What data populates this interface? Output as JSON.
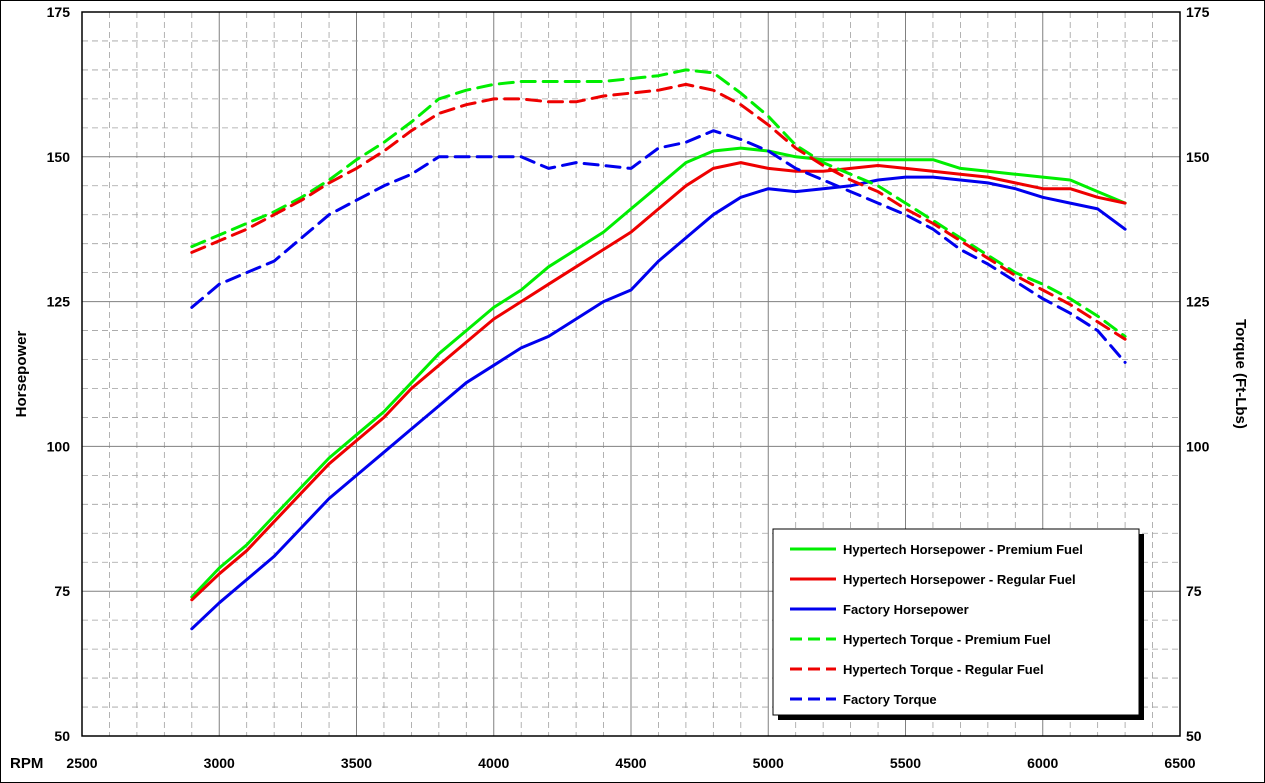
{
  "chart_data": {
    "type": "line",
    "xlabel": "RPM",
    "ylabel_left": "Horsepower",
    "ylabel_right": "Torque (Ft-Lbs)",
    "xlim": [
      2500,
      6500
    ],
    "ylim": [
      50,
      175
    ],
    "x_ticks": [
      "2500",
      "3000",
      "3500",
      "4000",
      "4500",
      "5000",
      "5500",
      "6000",
      "6500"
    ],
    "y_ticks": [
      "50",
      "75",
      "100",
      "125",
      "150",
      "175"
    ],
    "grid": true,
    "legend_position": "bottom-right",
    "series": [
      {
        "name": "Hypertech Horsepower - Premium Fuel",
        "color": "#00ee00",
        "dash": "solid",
        "points": [
          [
            2900,
            74
          ],
          [
            3000,
            79
          ],
          [
            3100,
            83
          ],
          [
            3200,
            88
          ],
          [
            3300,
            93
          ],
          [
            3400,
            98
          ],
          [
            3500,
            102
          ],
          [
            3600,
            106
          ],
          [
            3700,
            111
          ],
          [
            3800,
            116
          ],
          [
            3900,
            120
          ],
          [
            4000,
            124
          ],
          [
            4100,
            127
          ],
          [
            4200,
            131
          ],
          [
            4300,
            134
          ],
          [
            4400,
            137
          ],
          [
            4500,
            141
          ],
          [
            4600,
            145
          ],
          [
            4700,
            149
          ],
          [
            4800,
            151
          ],
          [
            4900,
            151.5
          ],
          [
            5000,
            151
          ],
          [
            5100,
            150
          ],
          [
            5200,
            149.5
          ],
          [
            5300,
            149.5
          ],
          [
            5400,
            149.5
          ],
          [
            5500,
            149.5
          ],
          [
            5600,
            149.5
          ],
          [
            5700,
            148
          ],
          [
            5800,
            147.5
          ],
          [
            5900,
            147
          ],
          [
            6000,
            146.5
          ],
          [
            6100,
            146
          ],
          [
            6200,
            144
          ],
          [
            6300,
            142
          ]
        ]
      },
      {
        "name": "Hypertech Horsepower - Regular Fuel",
        "color": "#ee0000",
        "dash": "solid",
        "points": [
          [
            2900,
            73.5
          ],
          [
            3000,
            78
          ],
          [
            3100,
            82
          ],
          [
            3200,
            87
          ],
          [
            3300,
            92
          ],
          [
            3400,
            97
          ],
          [
            3500,
            101
          ],
          [
            3600,
            105
          ],
          [
            3700,
            110
          ],
          [
            3800,
            114
          ],
          [
            3900,
            118
          ],
          [
            4000,
            122
          ],
          [
            4100,
            125
          ],
          [
            4200,
            128
          ],
          [
            4300,
            131
          ],
          [
            4400,
            134
          ],
          [
            4500,
            137
          ],
          [
            4600,
            141
          ],
          [
            4700,
            145
          ],
          [
            4800,
            148
          ],
          [
            4900,
            149
          ],
          [
            5000,
            148
          ],
          [
            5100,
            147.5
          ],
          [
            5200,
            147.5
          ],
          [
            5300,
            148
          ],
          [
            5400,
            148.5
          ],
          [
            5500,
            148
          ],
          [
            5600,
            147.5
          ],
          [
            5700,
            147
          ],
          [
            5800,
            146.5
          ],
          [
            5900,
            145.5
          ],
          [
            6000,
            144.5
          ],
          [
            6100,
            144.5
          ],
          [
            6200,
            143
          ],
          [
            6300,
            142
          ]
        ]
      },
      {
        "name": "Factory Horsepower",
        "color": "#0000ee",
        "dash": "solid",
        "points": [
          [
            2900,
            68.5
          ],
          [
            3000,
            73
          ],
          [
            3100,
            77
          ],
          [
            3200,
            81
          ],
          [
            3300,
            86
          ],
          [
            3400,
            91
          ],
          [
            3500,
            95
          ],
          [
            3600,
            99
          ],
          [
            3700,
            103
          ],
          [
            3800,
            107
          ],
          [
            3900,
            111
          ],
          [
            4000,
            114
          ],
          [
            4100,
            117
          ],
          [
            4200,
            119
          ],
          [
            4300,
            122
          ],
          [
            4400,
            125
          ],
          [
            4500,
            127
          ],
          [
            4600,
            132
          ],
          [
            4700,
            136
          ],
          [
            4800,
            140
          ],
          [
            4900,
            143
          ],
          [
            5000,
            144.5
          ],
          [
            5100,
            144
          ],
          [
            5200,
            144.5
          ],
          [
            5300,
            145
          ],
          [
            5400,
            146
          ],
          [
            5500,
            146.5
          ],
          [
            5600,
            146.5
          ],
          [
            5700,
            146
          ],
          [
            5800,
            145.5
          ],
          [
            5900,
            144.5
          ],
          [
            6000,
            143
          ],
          [
            6100,
            142
          ],
          [
            6200,
            141
          ],
          [
            6300,
            137.5
          ]
        ]
      },
      {
        "name": "Hypertech Torque - Premium Fuel",
        "color": "#00ee00",
        "dash": "dashed",
        "points": [
          [
            2900,
            134.5
          ],
          [
            3000,
            136.5
          ],
          [
            3100,
            138.5
          ],
          [
            3200,
            140.5
          ],
          [
            3300,
            143
          ],
          [
            3400,
            146
          ],
          [
            3500,
            149.5
          ],
          [
            3600,
            152.5
          ],
          [
            3700,
            156
          ],
          [
            3800,
            160
          ],
          [
            3900,
            161.5
          ],
          [
            4000,
            162.5
          ],
          [
            4100,
            163
          ],
          [
            4200,
            163
          ],
          [
            4300,
            163
          ],
          [
            4400,
            163
          ],
          [
            4500,
            163.5
          ],
          [
            4600,
            164
          ],
          [
            4700,
            165
          ],
          [
            4800,
            164.5
          ],
          [
            4900,
            161
          ],
          [
            5000,
            157
          ],
          [
            5100,
            152
          ],
          [
            5200,
            149
          ],
          [
            5300,
            147
          ],
          [
            5400,
            145
          ],
          [
            5500,
            142
          ],
          [
            5600,
            139
          ],
          [
            5700,
            136
          ],
          [
            5800,
            133
          ],
          [
            5900,
            130
          ],
          [
            6000,
            128
          ],
          [
            6100,
            125.5
          ],
          [
            6200,
            122.5
          ],
          [
            6300,
            119
          ]
        ]
      },
      {
        "name": "Hypertech Torque - Regular Fuel",
        "color": "#ee0000",
        "dash": "dashed",
        "points": [
          [
            2900,
            133.5
          ],
          [
            3000,
            135.5
          ],
          [
            3100,
            137.5
          ],
          [
            3200,
            140
          ],
          [
            3300,
            142.5
          ],
          [
            3400,
            145.5
          ],
          [
            3500,
            148
          ],
          [
            3600,
            151
          ],
          [
            3700,
            154.5
          ],
          [
            3800,
            157.5
          ],
          [
            3900,
            159
          ],
          [
            4000,
            160
          ],
          [
            4100,
            160
          ],
          [
            4200,
            159.5
          ],
          [
            4300,
            159.5
          ],
          [
            4400,
            160.5
          ],
          [
            4500,
            161
          ],
          [
            4600,
            161.5
          ],
          [
            4700,
            162.5
          ],
          [
            4800,
            161.5
          ],
          [
            4900,
            159
          ],
          [
            5000,
            155.5
          ],
          [
            5100,
            151.5
          ],
          [
            5200,
            148.5
          ],
          [
            5300,
            146
          ],
          [
            5400,
            144
          ],
          [
            5500,
            141
          ],
          [
            5600,
            138.5
          ],
          [
            5700,
            135.5
          ],
          [
            5800,
            132.5
          ],
          [
            5900,
            129.5
          ],
          [
            6000,
            127
          ],
          [
            6100,
            124.5
          ],
          [
            6200,
            121.5
          ],
          [
            6300,
            118.5
          ]
        ]
      },
      {
        "name": "Factory Torque",
        "color": "#0000ee",
        "dash": "dashed",
        "points": [
          [
            2900,
            124
          ],
          [
            3000,
            128
          ],
          [
            3100,
            130
          ],
          [
            3200,
            132
          ],
          [
            3300,
            136
          ],
          [
            3400,
            140
          ],
          [
            3500,
            142.5
          ],
          [
            3600,
            145
          ],
          [
            3700,
            147
          ],
          [
            3800,
            150
          ],
          [
            3900,
            150
          ],
          [
            4000,
            150
          ],
          [
            4100,
            150
          ],
          [
            4200,
            148
          ],
          [
            4300,
            149
          ],
          [
            4400,
            148.5
          ],
          [
            4500,
            148
          ],
          [
            4600,
            151.5
          ],
          [
            4700,
            152.5
          ],
          [
            4800,
            154.5
          ],
          [
            4900,
            153
          ],
          [
            5000,
            151
          ],
          [
            5100,
            148
          ],
          [
            5200,
            146
          ],
          [
            5300,
            144
          ],
          [
            5400,
            142
          ],
          [
            5500,
            140
          ],
          [
            5600,
            137.5
          ],
          [
            5700,
            134
          ],
          [
            5800,
            131.5
          ],
          [
            5900,
            128.5
          ],
          [
            6000,
            125.5
          ],
          [
            6100,
            123
          ],
          [
            6200,
            120
          ],
          [
            6300,
            114.5
          ]
        ]
      }
    ]
  }
}
